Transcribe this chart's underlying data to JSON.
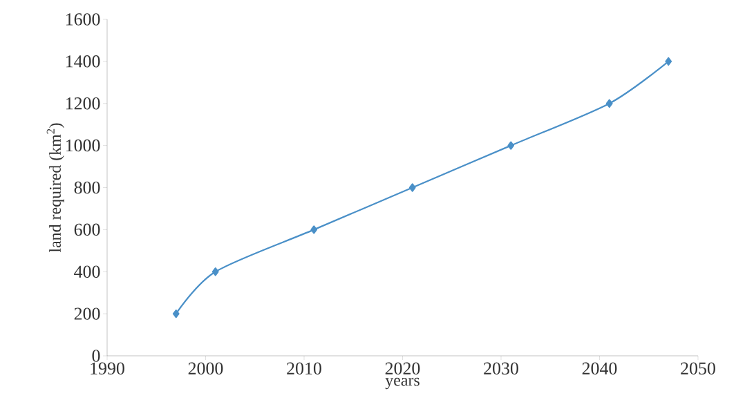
{
  "chart_data": {
    "type": "line",
    "xlabel": "years",
    "ylabel": "land required (km$^{2}$)",
    "x": [
      1997,
      2001,
      2011,
      2021,
      2031,
      2041,
      2047
    ],
    "series": [
      {
        "color": "#4a90c8",
        "values": [
          200,
          400,
          600,
          800,
          1000,
          1200,
          1400
        ]
      }
    ],
    "xlim": [
      1990,
      2050
    ],
    "xticks": [
      1990,
      2000,
      2010,
      2020,
      2030,
      2040,
      2050
    ],
    "ylim": [
      0,
      1600
    ],
    "yticks": [
      0,
      200,
      400,
      600,
      800,
      1000,
      1200,
      1400,
      1600
    ],
    "grid": false,
    "marker": "diamond",
    "line_style": "solid"
  }
}
